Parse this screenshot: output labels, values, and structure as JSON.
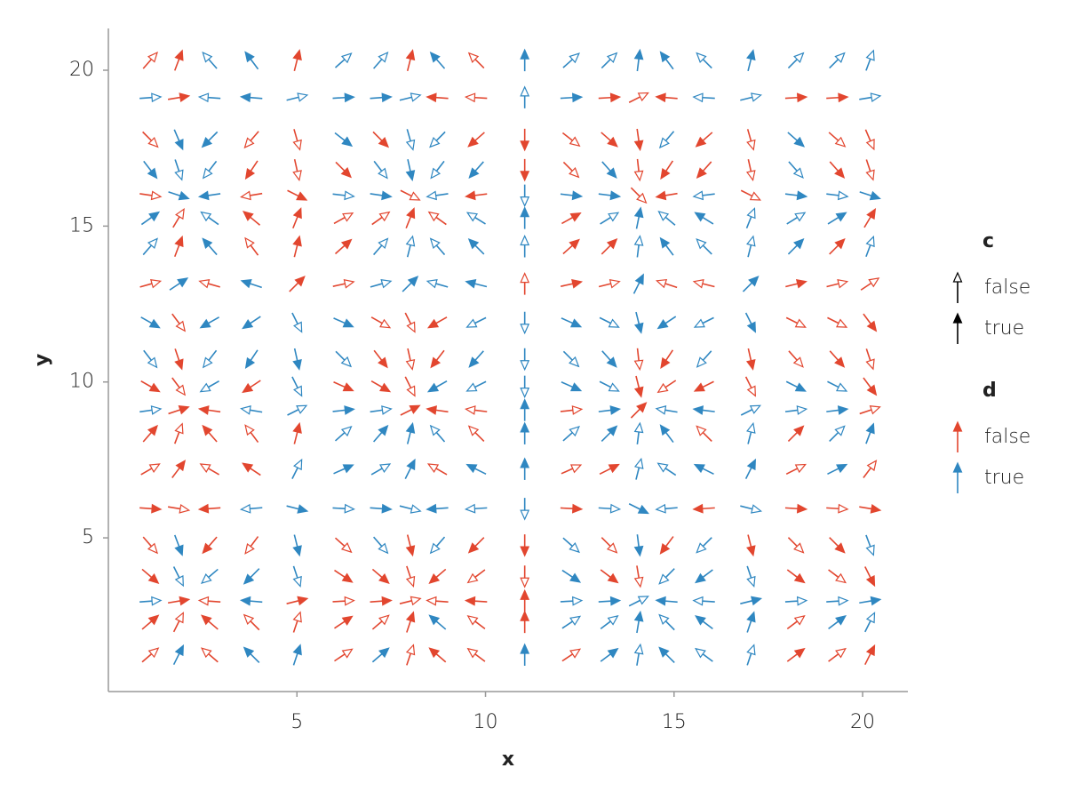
{
  "chart_data": {
    "type": "quiver",
    "x_label": "x",
    "y_label": "y",
    "x": [
      1.11,
      1.86,
      2.69,
      3.8,
      5.0,
      6.23,
      7.22,
      8.0,
      8.73,
      9.76,
      11.04,
      12.27,
      13.28,
      14.06,
      14.81,
      15.8,
      17.03,
      18.23,
      19.32,
      20.19
    ],
    "y": [
      20.31,
      19.12,
      17.78,
      16.81,
      15.99,
      15.25,
      14.34,
      13.14,
      11.91,
      10.74,
      9.86,
      9.09,
      8.34,
      7.2,
      5.94,
      4.77,
      3.77,
      2.97,
      2.29,
      1.24
    ],
    "u": [
      0.7,
      0.3,
      -0.7,
      -0.6,
      0.2,
      0.9,
      0.7,
      0.2,
      -0.7,
      -0.8,
      0,
      0.9,
      0.8,
      0.1,
      -0.6,
      -0.8,
      0.2,
      0.8,
      0.8,
      0.3
    ],
    "v": [
      0.8,
      0.05,
      -0.7,
      -0.9,
      -0.1,
      0.5,
      0.8,
      0.2,
      -0.4,
      -0.9,
      -0.4,
      0.1,
      0.8,
      0.4,
      -0.05,
      -0.8,
      -0.6,
      0.05,
      0.6,
      0.6
    ],
    "c": [
      [
        false,
        true,
        false,
        true,
        true,
        false,
        false,
        true,
        true,
        false,
        true,
        false,
        false,
        true,
        true,
        false,
        true,
        false,
        false,
        false
      ],
      [
        false,
        true,
        false,
        true,
        false,
        true,
        true,
        false,
        true,
        false,
        false,
        true,
        true,
        false,
        true,
        false,
        false,
        true,
        true,
        false
      ],
      [
        false,
        true,
        true,
        false,
        false,
        true,
        true,
        false,
        false,
        true,
        true,
        false,
        true,
        true,
        false,
        true,
        false,
        true,
        false,
        false
      ],
      [
        true,
        false,
        false,
        true,
        false,
        true,
        false,
        true,
        false,
        true,
        true,
        false,
        true,
        false,
        true,
        true,
        false,
        false,
        true,
        false
      ],
      [
        false,
        true,
        true,
        false,
        true,
        false,
        true,
        false,
        false,
        true,
        false,
        true,
        true,
        false,
        true,
        false,
        false,
        true,
        false,
        true
      ],
      [
        true,
        false,
        false,
        true,
        true,
        false,
        false,
        true,
        false,
        false,
        true,
        true,
        false,
        true,
        false,
        true,
        false,
        false,
        true,
        true
      ],
      [
        false,
        true,
        true,
        false,
        true,
        true,
        false,
        false,
        false,
        true,
        false,
        true,
        true,
        false,
        true,
        false,
        false,
        true,
        true,
        false
      ],
      [
        false,
        true,
        false,
        true,
        true,
        false,
        false,
        true,
        false,
        true,
        false,
        true,
        false,
        true,
        false,
        false,
        true,
        true,
        false,
        false
      ],
      [
        true,
        false,
        true,
        true,
        false,
        true,
        false,
        false,
        true,
        false,
        false,
        true,
        false,
        true,
        true,
        false,
        true,
        false,
        false,
        true
      ],
      [
        false,
        true,
        false,
        true,
        true,
        false,
        true,
        false,
        true,
        true,
        false,
        false,
        true,
        false,
        true,
        false,
        true,
        false,
        true,
        false
      ],
      [
        true,
        false,
        false,
        true,
        false,
        true,
        true,
        false,
        true,
        false,
        false,
        true,
        false,
        true,
        false,
        true,
        false,
        true,
        false,
        true
      ],
      [
        false,
        true,
        true,
        false,
        false,
        true,
        false,
        true,
        true,
        false,
        true,
        false,
        true,
        true,
        false,
        true,
        false,
        false,
        true,
        false
      ],
      [
        true,
        false,
        true,
        false,
        true,
        false,
        true,
        true,
        false,
        false,
        true,
        false,
        true,
        false,
        true,
        false,
        false,
        true,
        false,
        true
      ],
      [
        false,
        true,
        false,
        true,
        false,
        true,
        false,
        true,
        false,
        true,
        true,
        false,
        true,
        false,
        false,
        true,
        true,
        false,
        true,
        false
      ],
      [
        true,
        false,
        true,
        false,
        true,
        false,
        true,
        false,
        true,
        false,
        false,
        true,
        false,
        true,
        false,
        true,
        false,
        true,
        false,
        true
      ],
      [
        false,
        true,
        true,
        false,
        true,
        false,
        false,
        true,
        false,
        true,
        true,
        false,
        false,
        true,
        true,
        false,
        true,
        false,
        true,
        false
      ],
      [
        true,
        false,
        false,
        true,
        false,
        true,
        true,
        false,
        true,
        false,
        false,
        true,
        true,
        false,
        false,
        true,
        false,
        true,
        false,
        true
      ],
      [
        false,
        true,
        false,
        true,
        true,
        false,
        true,
        false,
        false,
        true,
        true,
        false,
        true,
        false,
        true,
        false,
        true,
        false,
        false,
        true
      ],
      [
        true,
        false,
        true,
        false,
        false,
        true,
        false,
        true,
        true,
        false,
        true,
        false,
        false,
        true,
        false,
        true,
        true,
        false,
        true,
        false
      ],
      [
        false,
        true,
        false,
        true,
        true,
        false,
        true,
        false,
        true,
        false,
        true,
        false,
        true,
        false,
        true,
        false,
        false,
        true,
        false,
        true
      ]
    ],
    "d": [
      [
        false,
        false,
        true,
        true,
        false,
        true,
        true,
        false,
        true,
        false,
        true,
        true,
        true,
        true,
        true,
        true,
        true,
        true,
        true,
        true
      ],
      [
        true,
        false,
        true,
        true,
        true,
        true,
        true,
        true,
        false,
        false,
        true,
        true,
        false,
        false,
        false,
        true,
        true,
        false,
        false,
        true
      ],
      [
        false,
        true,
        true,
        false,
        false,
        true,
        false,
        true,
        true,
        false,
        false,
        false,
        false,
        false,
        true,
        false,
        false,
        true,
        false,
        false
      ],
      [
        true,
        true,
        true,
        false,
        false,
        false,
        true,
        true,
        true,
        true,
        false,
        false,
        true,
        false,
        false,
        false,
        false,
        true,
        false,
        false
      ],
      [
        false,
        true,
        true,
        false,
        false,
        true,
        true,
        false,
        true,
        false,
        true,
        true,
        true,
        false,
        false,
        true,
        false,
        true,
        true,
        true
      ],
      [
        true,
        false,
        true,
        false,
        false,
        false,
        false,
        false,
        false,
        true,
        true,
        false,
        true,
        true,
        true,
        true,
        true,
        true,
        true,
        false
      ],
      [
        true,
        false,
        true,
        false,
        false,
        false,
        true,
        true,
        true,
        true,
        true,
        false,
        false,
        true,
        true,
        true,
        true,
        true,
        false,
        true
      ],
      [
        false,
        true,
        false,
        true,
        false,
        false,
        true,
        true,
        true,
        true,
        false,
        false,
        false,
        true,
        false,
        false,
        true,
        false,
        false,
        false
      ],
      [
        true,
        false,
        true,
        true,
        true,
        true,
        false,
        false,
        false,
        true,
        true,
        true,
        true,
        true,
        true,
        true,
        true,
        false,
        false,
        false
      ],
      [
        true,
        false,
        true,
        true,
        true,
        true,
        false,
        false,
        false,
        true,
        true,
        true,
        true,
        false,
        false,
        true,
        false,
        false,
        false,
        false
      ],
      [
        false,
        false,
        true,
        false,
        true,
        false,
        false,
        false,
        true,
        true,
        true,
        true,
        true,
        false,
        false,
        false,
        false,
        true,
        true,
        false
      ],
      [
        true,
        false,
        false,
        true,
        true,
        true,
        true,
        false,
        false,
        false,
        true,
        false,
        true,
        false,
        true,
        true,
        true,
        true,
        true,
        false
      ],
      [
        false,
        false,
        false,
        false,
        false,
        true,
        true,
        true,
        true,
        false,
        true,
        true,
        true,
        true,
        true,
        false,
        true,
        false,
        true,
        true
      ],
      [
        false,
        false,
        false,
        false,
        true,
        true,
        true,
        true,
        false,
        true,
        true,
        false,
        false,
        true,
        true,
        true,
        true,
        false,
        true,
        false
      ],
      [
        false,
        false,
        false,
        true,
        true,
        true,
        true,
        true,
        true,
        true,
        true,
        false,
        true,
        true,
        true,
        false,
        true,
        false,
        false,
        false
      ],
      [
        false,
        true,
        false,
        false,
        true,
        false,
        true,
        false,
        true,
        false,
        false,
        true,
        false,
        true,
        false,
        true,
        false,
        false,
        false,
        true
      ],
      [
        false,
        true,
        true,
        true,
        true,
        false,
        false,
        false,
        false,
        false,
        false,
        true,
        false,
        false,
        true,
        true,
        true,
        false,
        false,
        false
      ],
      [
        true,
        false,
        false,
        true,
        false,
        false,
        false,
        false,
        false,
        false,
        false,
        true,
        true,
        true,
        true,
        true,
        true,
        true,
        true,
        true
      ],
      [
        false,
        false,
        false,
        false,
        false,
        false,
        false,
        false,
        true,
        false,
        false,
        true,
        true,
        true,
        true,
        true,
        true,
        false,
        true,
        true
      ],
      [
        false,
        true,
        false,
        true,
        true,
        false,
        true,
        false,
        false,
        false,
        true,
        false,
        true,
        true,
        true,
        true,
        true,
        false,
        false,
        false
      ]
    ],
    "xlim": [
      0,
      21.2
    ],
    "ylim": [
      0.07,
      21.34
    ],
    "xticks": [
      5,
      10,
      15,
      20
    ],
    "yticks": [
      5,
      10,
      15,
      20
    ],
    "legends": [
      {
        "title": "c",
        "labels": [
          "false",
          "true"
        ]
      },
      {
        "title": "d",
        "labels": [
          "false",
          "true"
        ],
        "colors": [
          "#e2462f",
          "#2f87c1"
        ]
      }
    ]
  }
}
